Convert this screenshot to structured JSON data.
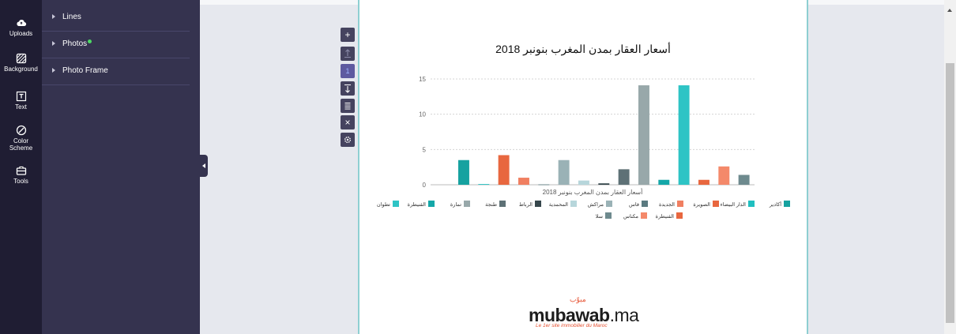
{
  "rail": {
    "items": [
      {
        "label": "Uploads",
        "icon": "cloud-upload-icon"
      },
      {
        "label": "Background",
        "icon": "background-pattern-icon"
      },
      {
        "label": "Text",
        "icon": "text-icon"
      },
      {
        "label": "Color",
        "label2": "Scheme",
        "icon": "palette-icon"
      },
      {
        "label": "Tools",
        "icon": "toolbox-icon"
      }
    ]
  },
  "panel": {
    "items": [
      {
        "label": "Lines"
      },
      {
        "label": "Photos"
      },
      {
        "label": "Photo Frame"
      }
    ]
  },
  "toolbar": {
    "add": "+",
    "page_number": "1",
    "delete": "×"
  },
  "document": {
    "title": "أسعار العقار بمدن المغرب بنونبر 2018",
    "logo_text": "mubawab",
    "logo_tld": ".ma",
    "logo_arabic": "مبوّب",
    "tagline": "Le 1er site immobilier du Maroc"
  },
  "chart_data": {
    "type": "bar",
    "x_title": "أسعار العقار بمدن المغرب بنونبر 2018",
    "ylim": [
      0,
      15
    ],
    "yticks": [
      0,
      5,
      10,
      15
    ],
    "grid": true,
    "legend_position": "bottom",
    "series": [
      {
        "name": "أكادير",
        "value": 3.5,
        "color": "#16a2a0"
      },
      {
        "name": "الدار البيضاء",
        "value": 0.1,
        "color": "#20bfc0"
      },
      {
        "name": "الصويرة",
        "value": 4.2,
        "color": "#e8673f"
      },
      {
        "name": "الجديدة",
        "value": 1.0,
        "color": "#f07f61"
      },
      {
        "name": "فاس",
        "value": 0.05,
        "color": "#5b7a80"
      },
      {
        "name": "مراكش",
        "value": 3.5,
        "color": "#9ab2b6"
      },
      {
        "name": "المحمدية",
        "value": 0.6,
        "color": "#b7d6db"
      },
      {
        "name": "الرباط",
        "value": 0.2,
        "color": "#36474c"
      },
      {
        "name": "طنجة",
        "value": 2.2,
        "color": "#5e7176"
      },
      {
        "name": "تمارة",
        "value": 14.1,
        "color": "#98a8aa"
      },
      {
        "name": "القنيطرة",
        "value": 0.7,
        "color": "#14a7a8"
      },
      {
        "name": "تطوان",
        "value": 14.1,
        "color": "#2ec4c5"
      },
      {
        "name": "القنيطرة",
        "value": 0.7,
        "color": "#e8673f"
      },
      {
        "name": "مكناس",
        "value": 2.6,
        "color": "#f4896a"
      },
      {
        "name": "سلا",
        "value": 1.4,
        "color": "#6e8a8e"
      }
    ]
  },
  "scrollbar": {
    "position": 0.2
  }
}
